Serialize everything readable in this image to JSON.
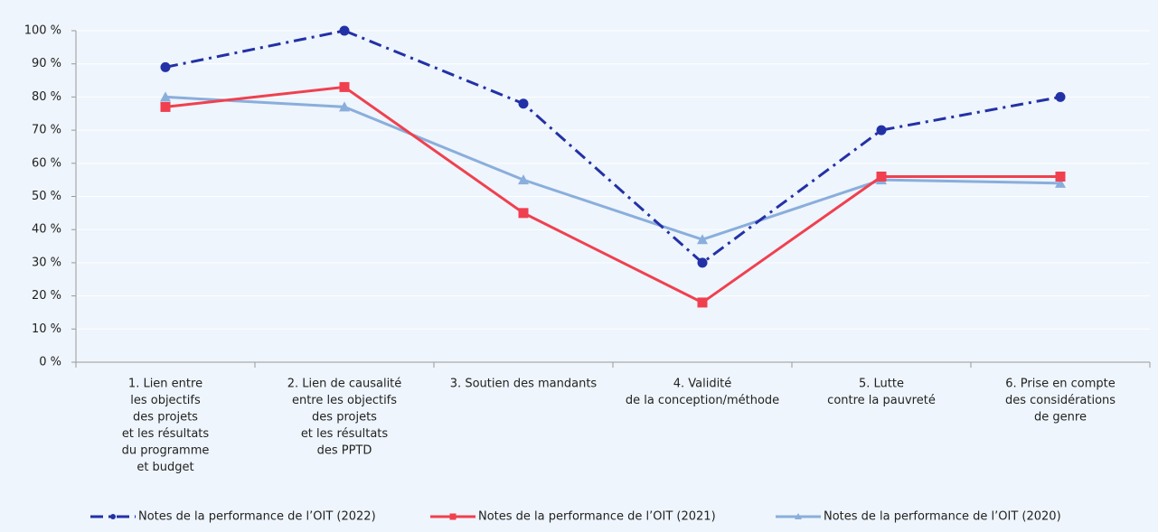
{
  "chart_data": {
    "type": "line",
    "categories": [
      [
        "1. Lien entre",
        "les objectifs",
        "des projets",
        "et les résultats",
        "du programme",
        "et budget"
      ],
      [
        "2. Lien de causalité",
        "entre les objectifs",
        "des projets",
        "et les résultats",
        "des PPTD"
      ],
      [
        "3. Soutien des mandants"
      ],
      [
        "4. Validité",
        "de la conception/méthode"
      ],
      [
        "5. Lutte",
        "contre la pauvreté"
      ],
      [
        "6. Prise en compte",
        "des considérations",
        "de genre"
      ]
    ],
    "series": [
      {
        "name": "Notes de la performance de l’OIT (2022)",
        "color": "#2331a6",
        "dash": "dashdot",
        "marker": "circle",
        "values": [
          89,
          100,
          78,
          30,
          70,
          80
        ]
      },
      {
        "name": "Notes de la performance de l’OIT (2021)",
        "color": "#f0404f",
        "dash": "solid",
        "marker": "square",
        "values": [
          77,
          83,
          45,
          18,
          56,
          56
        ]
      },
      {
        "name": "Notes de la performance de l’OIT (2020)",
        "color": "#8aaedc",
        "dash": "solid",
        "marker": "triangle",
        "values": [
          80,
          77,
          55,
          37,
          55,
          54
        ]
      }
    ],
    "ylim": [
      0,
      100
    ],
    "yticks": [
      {
        "value": 0,
        "label": "0 %"
      },
      {
        "value": 10,
        "label": "10 %"
      },
      {
        "value": 20,
        "label": "20 %"
      },
      {
        "value": 30,
        "label": "30 %"
      },
      {
        "value": 40,
        "label": "40 %"
      },
      {
        "value": 50,
        "label": "50 %"
      },
      {
        "value": 60,
        "label": "60 %"
      },
      {
        "value": 70,
        "label": "70 %"
      },
      {
        "value": 80,
        "label": "80 %"
      },
      {
        "value": 90,
        "label": "90 %"
      },
      {
        "value": 100,
        "label": "100 %"
      }
    ],
    "grid": true,
    "legend": "bottom"
  }
}
